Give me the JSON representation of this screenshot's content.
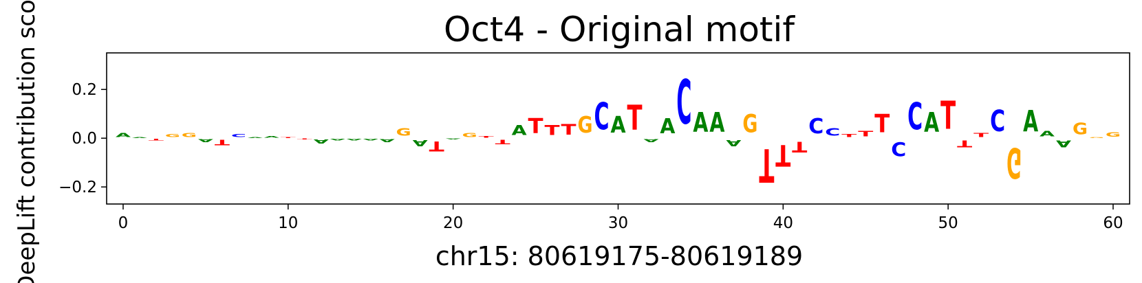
{
  "chart_data": {
    "type": "sequence-logo",
    "title": "Oct4 - Original motif",
    "xlabel": "chr15: 80619175-80619189",
    "ylabel": "DeepLift contribution scores",
    "xlim": [
      -1,
      61
    ],
    "ylim": [
      -0.27,
      0.35
    ],
    "xticks": [
      0,
      10,
      20,
      30,
      40,
      50,
      60
    ],
    "yticks": [
      -0.2,
      0.0,
      0.2
    ],
    "ytick_labels": [
      "−0.2",
      "0.0",
      "0.2"
    ],
    "colors": {
      "A": "#008000",
      "C": "#0000ff",
      "G": "#ffa500",
      "T": "#ff0000"
    },
    "positions": [
      {
        "pos": 0,
        "base": "A",
        "score": 0.025
      },
      {
        "pos": 1,
        "base": "A",
        "score": 0.005
      },
      {
        "pos": 2,
        "base": "T",
        "score": -0.01
      },
      {
        "pos": 3,
        "base": "G",
        "score": 0.02
      },
      {
        "pos": 4,
        "base": "G",
        "score": 0.025
      },
      {
        "pos": 5,
        "base": "A",
        "score": -0.02
      },
      {
        "pos": 6,
        "base": "T",
        "score": -0.035
      },
      {
        "pos": 7,
        "base": "C",
        "score": 0.02
      },
      {
        "pos": 8,
        "base": "A",
        "score": 0.005
      },
      {
        "pos": 9,
        "base": "A",
        "score": 0.01
      },
      {
        "pos": 10,
        "base": "T",
        "score": 0.005
      },
      {
        "pos": 11,
        "base": "T",
        "score": -0.005
      },
      {
        "pos": 12,
        "base": "A",
        "score": -0.025
      },
      {
        "pos": 13,
        "base": "A",
        "score": -0.01
      },
      {
        "pos": 14,
        "base": "A",
        "score": -0.01
      },
      {
        "pos": 15,
        "base": "A",
        "score": -0.01
      },
      {
        "pos": 16,
        "base": "A",
        "score": -0.02
      },
      {
        "pos": 17,
        "base": "G",
        "score": 0.05
      },
      {
        "pos": 18,
        "base": "A",
        "score": -0.04
      },
      {
        "pos": 19,
        "base": "T",
        "score": -0.065
      },
      {
        "pos": 20,
        "base": "A",
        "score": -0.005
      },
      {
        "pos": 21,
        "base": "G",
        "score": 0.025
      },
      {
        "pos": 22,
        "base": "T",
        "score": 0.01
      },
      {
        "pos": 23,
        "base": "T",
        "score": -0.03
      },
      {
        "pos": 24,
        "base": "A",
        "score": 0.065
      },
      {
        "pos": 25,
        "base": "T",
        "score": 0.1
      },
      {
        "pos": 26,
        "base": "T",
        "score": 0.065
      },
      {
        "pos": 27,
        "base": "T",
        "score": 0.07
      },
      {
        "pos": 28,
        "base": "G",
        "score": 0.11
      },
      {
        "pos": 29,
        "base": "C",
        "score": 0.18
      },
      {
        "pos": 30,
        "base": "A",
        "score": 0.11
      },
      {
        "pos": 31,
        "base": "T",
        "score": 0.165
      },
      {
        "pos": 32,
        "base": "A",
        "score": -0.02
      },
      {
        "pos": 33,
        "base": "A",
        "score": 0.1
      },
      {
        "pos": 34,
        "base": "C",
        "score": 0.29
      },
      {
        "pos": 35,
        "base": "A",
        "score": 0.13
      },
      {
        "pos": 36,
        "base": "A",
        "score": 0.13
      },
      {
        "pos": 37,
        "base": "A",
        "score": -0.04
      },
      {
        "pos": 38,
        "base": "G",
        "score": 0.12
      },
      {
        "pos": 39,
        "base": "T",
        "score": -0.22
      },
      {
        "pos": 40,
        "base": "T",
        "score": -0.14
      },
      {
        "pos": 41,
        "base": "T",
        "score": -0.07
      },
      {
        "pos": 42,
        "base": "C",
        "score": 0.1
      },
      {
        "pos": 43,
        "base": "C",
        "score": 0.05
      },
      {
        "pos": 44,
        "base": "T",
        "score": 0.02
      },
      {
        "pos": 45,
        "base": "T",
        "score": 0.035
      },
      {
        "pos": 46,
        "base": "T",
        "score": 0.12
      },
      {
        "pos": 47,
        "base": "C",
        "score": -0.09
      },
      {
        "pos": 48,
        "base": "C",
        "score": 0.18
      },
      {
        "pos": 49,
        "base": "A",
        "score": 0.13
      },
      {
        "pos": 50,
        "base": "T",
        "score": 0.185
      },
      {
        "pos": 51,
        "base": "T",
        "score": -0.045
      },
      {
        "pos": 52,
        "base": "T",
        "score": 0.025
      },
      {
        "pos": 53,
        "base": "C",
        "score": 0.14
      },
      {
        "pos": 54,
        "base": "G",
        "score": -0.2
      },
      {
        "pos": 55,
        "base": "A",
        "score": 0.14
      },
      {
        "pos": 56,
        "base": "A",
        "score": 0.035
      },
      {
        "pos": 57,
        "base": "A",
        "score": -0.045
      },
      {
        "pos": 58,
        "base": "G",
        "score": 0.075
      },
      {
        "pos": 59,
        "base": "G",
        "score": 0.005
      },
      {
        "pos": 60,
        "base": "G",
        "score": 0.03
      }
    ]
  }
}
